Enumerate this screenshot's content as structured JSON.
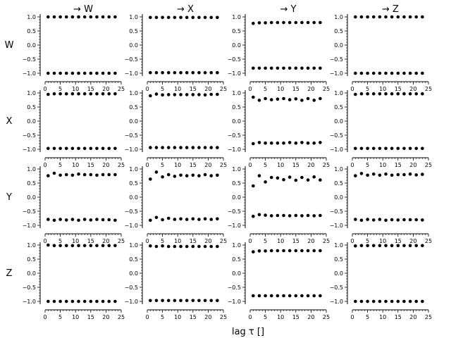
{
  "chart_data": {
    "type": "scatter",
    "xlabel": "lag τ []",
    "column_titles": [
      "→ W",
      "→ X",
      "→ Y",
      "→ Z"
    ],
    "row_labels": [
      "W",
      "X",
      "Y",
      "Z"
    ],
    "xlim": [
      0,
      25
    ],
    "ylim": [
      -1.0,
      1.0
    ],
    "xticks": [
      "0",
      "5",
      "10",
      "15",
      "20",
      "25"
    ],
    "yticks": [
      "−1.0",
      "−0.5",
      "0.0",
      "0.5",
      "1.0"
    ],
    "lags": [
      1,
      3,
      5,
      7,
      9,
      11,
      13,
      15,
      17,
      19,
      21,
      23
    ],
    "grid": false,
    "panels": [
      [
        {
          "upper": [
            1.0,
            1.0,
            1.0,
            1.0,
            1.0,
            1.0,
            1.0,
            1.0,
            1.0,
            1.0,
            1.0,
            1.0
          ],
          "lower": [
            -1.0,
            -1.0,
            -1.0,
            -1.0,
            -1.0,
            -1.0,
            -1.0,
            -1.0,
            -1.0,
            -1.0,
            -1.0,
            -1.0
          ]
        },
        {
          "upper": [
            0.98,
            0.98,
            0.98,
            0.98,
            0.98,
            0.98,
            0.98,
            0.98,
            0.98,
            0.98,
            0.98,
            0.98
          ],
          "lower": [
            -0.98,
            -0.98,
            -0.98,
            -0.98,
            -0.98,
            -0.98,
            -0.98,
            -0.98,
            -0.98,
            -0.98,
            -0.98,
            -0.98
          ]
        },
        {
          "upper": [
            0.77,
            0.79,
            0.79,
            0.8,
            0.8,
            0.8,
            0.8,
            0.8,
            0.8,
            0.8,
            0.8,
            0.8
          ],
          "lower": [
            -0.82,
            -0.82,
            -0.82,
            -0.82,
            -0.82,
            -0.82,
            -0.82,
            -0.82,
            -0.82,
            -0.82,
            -0.82,
            -0.82
          ]
        },
        {
          "upper": [
            1.0,
            1.0,
            1.0,
            1.0,
            1.0,
            1.0,
            1.0,
            1.0,
            1.0,
            1.0,
            1.0,
            1.0
          ],
          "lower": [
            -1.0,
            -1.0,
            -1.0,
            -1.0,
            -1.0,
            -1.0,
            -1.0,
            -1.0,
            -1.0,
            -1.0,
            -1.0,
            -1.0
          ]
        }
      ],
      [
        {
          "upper": [
            0.95,
            0.97,
            0.97,
            0.97,
            0.97,
            0.97,
            0.97,
            0.97,
            0.97,
            0.97,
            0.97,
            0.97
          ],
          "lower": [
            -0.97,
            -0.97,
            -0.97,
            -0.97,
            -0.97,
            -0.97,
            -0.97,
            -0.97,
            -0.97,
            -0.97,
            -0.97,
            -0.97
          ]
        },
        {
          "upper": [
            0.9,
            0.96,
            0.93,
            0.94,
            0.94,
            0.94,
            0.94,
            0.94,
            0.94,
            0.93,
            0.95,
            0.95
          ],
          "lower": [
            -0.94,
            -0.94,
            -0.94,
            -0.94,
            -0.94,
            -0.94,
            -0.94,
            -0.94,
            -0.94,
            -0.94,
            -0.94,
            -0.94
          ]
        },
        {
          "upper": [
            0.85,
            0.74,
            0.8,
            0.76,
            0.78,
            0.8,
            0.76,
            0.79,
            0.74,
            0.8,
            0.74,
            0.8
          ],
          "lower": [
            -0.8,
            -0.76,
            -0.78,
            -0.78,
            -0.78,
            -0.78,
            -0.76,
            -0.78,
            -0.76,
            -0.78,
            -0.78,
            -0.76
          ]
        },
        {
          "upper": [
            0.95,
            0.97,
            0.97,
            0.97,
            0.97,
            0.97,
            0.97,
            0.97,
            0.97,
            0.97,
            0.97,
            0.97
          ],
          "lower": [
            -0.97,
            -0.97,
            -0.97,
            -0.97,
            -0.97,
            -0.97,
            -0.97,
            -0.97,
            -0.97,
            -0.97,
            -0.97,
            -0.97
          ]
        }
      ],
      [
        {
          "upper": [
            0.76,
            0.85,
            0.78,
            0.8,
            0.78,
            0.82,
            0.8,
            0.8,
            0.78,
            0.8,
            0.8,
            0.8
          ],
          "lower": [
            -0.79,
            -0.82,
            -0.79,
            -0.81,
            -0.79,
            -0.82,
            -0.79,
            -0.81,
            -0.79,
            -0.8,
            -0.8,
            -0.82
          ]
        },
        {
          "upper": [
            0.64,
            0.89,
            0.72,
            0.8,
            0.74,
            0.78,
            0.76,
            0.78,
            0.76,
            0.8,
            0.76,
            0.78
          ],
          "lower": [
            -0.82,
            -0.72,
            -0.8,
            -0.75,
            -0.79,
            -0.77,
            -0.79,
            -0.77,
            -0.79,
            -0.77,
            -0.79,
            -0.77
          ]
        },
        {
          "upper": [
            0.4,
            0.76,
            0.54,
            0.7,
            0.68,
            0.62,
            0.71,
            0.6,
            0.7,
            0.61,
            0.72,
            0.61
          ],
          "lower": [
            -0.68,
            -0.62,
            -0.64,
            -0.66,
            -0.65,
            -0.65,
            -0.66,
            -0.65,
            -0.66,
            -0.65,
            -0.66,
            -0.65
          ]
        },
        {
          "upper": [
            0.76,
            0.84,
            0.78,
            0.82,
            0.78,
            0.82,
            0.78,
            0.8,
            0.8,
            0.82,
            0.79,
            0.81
          ],
          "lower": [
            -0.79,
            -0.82,
            -0.79,
            -0.81,
            -0.79,
            -0.82,
            -0.8,
            -0.81,
            -0.8,
            -0.8,
            -0.8,
            -0.81
          ]
        }
      ],
      [
        {
          "upper": [
            1.0,
            0.98,
            0.98,
            0.98,
            0.98,
            0.98,
            0.98,
            0.98,
            0.98,
            0.98,
            0.98,
            0.98
          ],
          "lower": [
            -1.0,
            -1.0,
            -1.0,
            -1.0,
            -1.0,
            -1.0,
            -1.0,
            -1.0,
            -1.0,
            -1.0,
            -1.0,
            -1.0
          ]
        },
        {
          "upper": [
            0.97,
            0.95,
            0.97,
            0.95,
            0.95,
            0.95,
            0.95,
            0.95,
            0.95,
            0.95,
            0.95,
            0.95
          ],
          "lower": [
            -0.97,
            -0.97,
            -0.97,
            -0.97,
            -0.97,
            -0.97,
            -0.97,
            -0.97,
            -0.97,
            -0.97,
            -0.97,
            -0.97
          ]
        },
        {
          "upper": [
            0.76,
            0.79,
            0.79,
            0.8,
            0.8,
            0.8,
            0.8,
            0.8,
            0.8,
            0.8,
            0.8,
            0.8
          ],
          "lower": [
            -0.8,
            -0.8,
            -0.8,
            -0.8,
            -0.8,
            -0.8,
            -0.8,
            -0.8,
            -0.8,
            -0.8,
            -0.8,
            -0.8
          ]
        },
        {
          "upper": [
            0.97,
            0.98,
            0.98,
            0.98,
            0.98,
            0.98,
            0.98,
            0.98,
            0.98,
            0.98,
            0.98,
            0.98
          ],
          "lower": [
            -1.0,
            -1.0,
            -1.0,
            -1.0,
            -1.0,
            -1.0,
            -1.0,
            -1.0,
            -1.0,
            -1.0,
            -1.0,
            -1.0
          ]
        }
      ]
    ]
  }
}
